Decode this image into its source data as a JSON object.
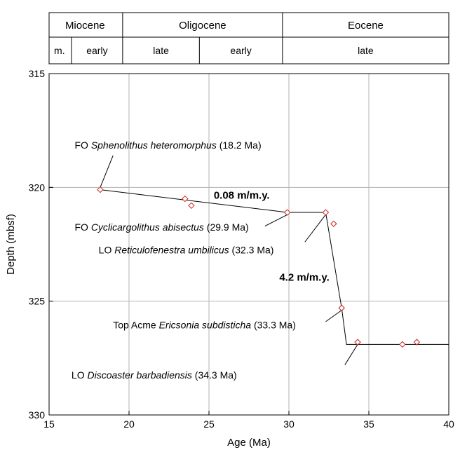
{
  "epoch_header": {
    "epochs": [
      {
        "label": "Miocene",
        "from": 14.9,
        "to": 19.6
      },
      {
        "label": "Oligocene",
        "from": 19.6,
        "to": 29.6
      },
      {
        "label": "Eocene",
        "from": 29.6,
        "to": 40
      }
    ],
    "stages": [
      {
        "label": "m.",
        "from": 14.9,
        "to": 16.4
      },
      {
        "label": "early",
        "from": 16.4,
        "to": 19.6
      },
      {
        "label": "late",
        "from": 19.6,
        "to": 24.4
      },
      {
        "label": "early",
        "from": 24.4,
        "to": 29.6
      },
      {
        "label": "late",
        "from": 29.6,
        "to": 40
      }
    ]
  },
  "chart_data": {
    "type": "scatter",
    "xlabel": "Age (Ma)",
    "ylabel": "Depth (mbsf)",
    "xlim": [
      15,
      40
    ],
    "ylim": [
      315,
      330
    ],
    "y_inverted": true,
    "xticks": [
      15,
      20,
      25,
      30,
      35,
      40
    ],
    "yticks": [
      315,
      320,
      325,
      330
    ],
    "grid": true,
    "marker_color": "#cc2222",
    "points": [
      {
        "x": 18.2,
        "y": 320.1
      },
      {
        "x": 23.5,
        "y": 320.5
      },
      {
        "x": 23.9,
        "y": 320.8
      },
      {
        "x": 29.9,
        "y": 321.1
      },
      {
        "x": 32.3,
        "y": 321.1
      },
      {
        "x": 32.8,
        "y": 321.6
      },
      {
        "x": 33.3,
        "y": 325.3
      },
      {
        "x": 34.3,
        "y": 326.8
      },
      {
        "x": 37.1,
        "y": 326.9
      },
      {
        "x": 38.0,
        "y": 326.8
      }
    ],
    "age_depth_line": [
      {
        "x": 18.2,
        "y": 320.1
      },
      {
        "x": 29.9,
        "y": 321.1
      },
      {
        "x": 32.3,
        "y": 321.1
      },
      {
        "x": 33.3,
        "y": 325.3
      },
      {
        "x": 33.6,
        "y": 326.9
      },
      {
        "x": 40.0,
        "y": 326.9
      }
    ],
    "rate_labels": [
      {
        "text": "0.08 m/m.y.",
        "x": 25.3,
        "y": 320.5
      },
      {
        "text": "4.2 m/m.y.",
        "x": 29.4,
        "y": 324.1
      }
    ],
    "annotations": [
      {
        "parts": [
          {
            "t": "FO ",
            "i": false
          },
          {
            "t": "Sphenolithus heteromorphus",
            "i": true
          },
          {
            "t": " (18.2 Ma)",
            "i": false
          }
        ],
        "tx": 16.6,
        "ty": 318.3,
        "leader": [
          [
            18.2,
            320.0
          ],
          [
            19.0,
            318.6
          ]
        ]
      },
      {
        "parts": [
          {
            "t": "FO ",
            "i": false
          },
          {
            "t": "Cyclicargolithus abisectus",
            "i": true
          },
          {
            "t": " (29.9 Ma)",
            "i": false
          }
        ],
        "tx": 16.6,
        "ty": 321.9,
        "leader": [
          [
            29.9,
            321.2
          ],
          [
            28.5,
            321.7
          ]
        ]
      },
      {
        "parts": [
          {
            "t": "LO ",
            "i": false
          },
          {
            "t": "Reticulofenestra umbilicus",
            "i": true
          },
          {
            "t": " (32.3 Ma)",
            "i": false
          }
        ],
        "tx": 18.1,
        "ty": 322.9,
        "leader": [
          [
            32.3,
            321.2
          ],
          [
            31.0,
            322.4
          ]
        ]
      },
      {
        "parts": [
          {
            "t": "Top Acme  ",
            "i": false
          },
          {
            "t": "Ericsonia subdisticha",
            "i": true
          },
          {
            "t": " (33.3 Ma)",
            "i": false
          }
        ],
        "tx": 19.0,
        "ty": 326.2,
        "leader": [
          [
            33.3,
            325.4
          ],
          [
            32.3,
            325.9
          ]
        ]
      },
      {
        "parts": [
          {
            "t": "LO ",
            "i": false
          },
          {
            "t": "Discoaster barbadiensis",
            "i": true
          },
          {
            "t": " (34.3 Ma)",
            "i": false
          }
        ],
        "tx": 16.4,
        "ty": 328.4,
        "leader": [
          [
            34.3,
            326.9
          ],
          [
            33.5,
            327.8
          ]
        ]
      }
    ]
  }
}
